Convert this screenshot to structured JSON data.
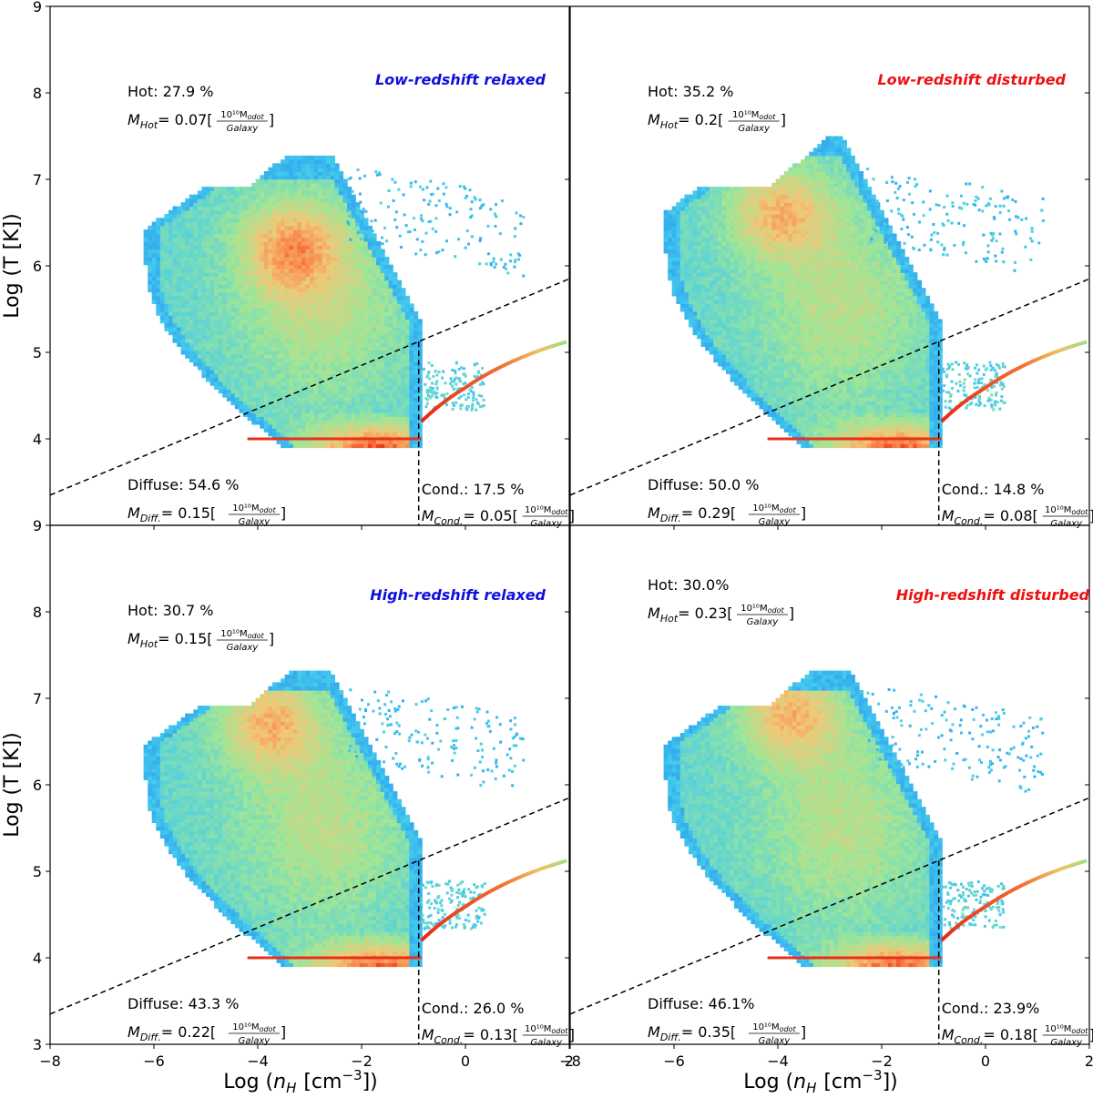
{
  "chart_data": {
    "type": "heatmap",
    "x_axis": {
      "label": "Log (n_H  [cm^-3])",
      "range": [
        -8,
        2
      ],
      "ticks": [
        -8,
        -6,
        -4,
        -2,
        0,
        2
      ]
    },
    "y_axis": {
      "label": "Log (T [K])",
      "range": [
        3,
        9
      ],
      "ticks": [
        3,
        4,
        5,
        6,
        7,
        8,
        9
      ]
    },
    "boundary": {
      "diagonal_line": {
        "x": [
          -8,
          2
        ],
        "y": [
          3.35,
          5.85
        ]
      },
      "density_cut": -0.9
    },
    "panels": [
      {
        "title": "Low-redshift relaxed",
        "title_color": "#1010dd",
        "hot_label": "Hot: 27.9 %",
        "m_hot_value": "= 0.07[",
        "diffuse_label": "Diffuse: 54.6 %",
        "m_diff_value": "= 0.15[",
        "cond_label": "Cond.: 17.5 %",
        "m_cond_value": "= 0.05[",
        "hot_position": "top",
        "hot_peak": [
          -3.4,
          6.2
        ]
      },
      {
        "title": "Low-redshift disturbed",
        "title_color": "#ee1111",
        "hot_label": "Hot: 35.2 %",
        "m_hot_value": "= 0.2[",
        "diffuse_label": "Diffuse: 50.0 %",
        "m_diff_value": "= 0.29[",
        "cond_label": "Cond.: 14.8 %",
        "m_cond_value": "= 0.08[",
        "hot_position": "top",
        "hot_peak": [
          -4.0,
          6.6
        ]
      },
      {
        "title": "High-redshift relaxed",
        "title_color": "#1010dd",
        "hot_label": "Hot: 30.7 %",
        "m_hot_value": "= 0.15[",
        "diffuse_label": "Diffuse: 43.3 %",
        "m_diff_value": "= 0.22[",
        "cond_label": "Cond.: 26.0 %",
        "m_cond_value": "= 0.13[",
        "hot_position": "low",
        "hot_peak": [
          -3.8,
          6.7
        ]
      },
      {
        "title": "High-redshift disturbed",
        "title_color": "#ee1111",
        "hot_label": "Hot: 30.0%",
        "m_hot_value": "= 0.23[",
        "diffuse_label": "Diffuse: 46.1%",
        "m_diff_value": "= 0.35[",
        "cond_label": "Cond.: 23.9%",
        "m_cond_value": "= 0.18[",
        "hot_position": "top",
        "hot_peak": [
          -3.8,
          6.8
        ]
      }
    ],
    "mass_symbol": "M",
    "sub_hot": "Hot",
    "sub_diff": "Diff.",
    "sub_cond": "Cond.",
    "unit_numerator": "10¹⁰M",
    "unit_numerator_sub": "odot",
    "unit_denominator": "Galaxy",
    "unit_close": "]",
    "xlabel_prefix": "Log (",
    "xlabel_n": "n",
    "xlabel_n_sub": "H",
    "xlabel_unit": "[cm",
    "xlabel_exp": "−3",
    "xlabel_close": "])",
    "ylabel_text": "Log (T [K])"
  }
}
